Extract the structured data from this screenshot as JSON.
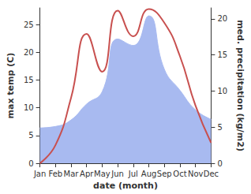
{
  "chart_data": {
    "type": "line",
    "x_label": "date (month)",
    "y_label": "max temp (C)",
    "y2_label": "med. precipitation (kg/m2)",
    "categories": [
      "Jan",
      "Feb",
      "Mar",
      "Apr",
      "May",
      "Jun",
      "Jul",
      "Aug",
      "Sep",
      "Oct",
      "Nov",
      "Dec"
    ],
    "series": [
      {
        "name": "med. precipitation",
        "type": "area",
        "axis": "y2",
        "color": "#a8baf0",
        "values": [
          4.9,
          5.1,
          6.0,
          8.2,
          9.9,
          17.2,
          16.3,
          20.4,
          13.0,
          10.1,
          7.4,
          6.1
        ]
      },
      {
        "name": "max temp",
        "type": "line",
        "color": "#c8504f",
        "values": [
          0.0,
          3.3,
          11.8,
          23.3,
          16.5,
          27.5,
          22.9,
          27.8,
          25.3,
          19.3,
          10.4,
          3.7
        ]
      }
    ],
    "ylim": [
      0,
      28
    ],
    "yticks": [
      0,
      5,
      10,
      15,
      20,
      25
    ],
    "y2lim": [
      0,
      21.5
    ],
    "y2ticks": [
      0,
      5,
      10,
      15,
      20
    ],
    "grid": false
  }
}
